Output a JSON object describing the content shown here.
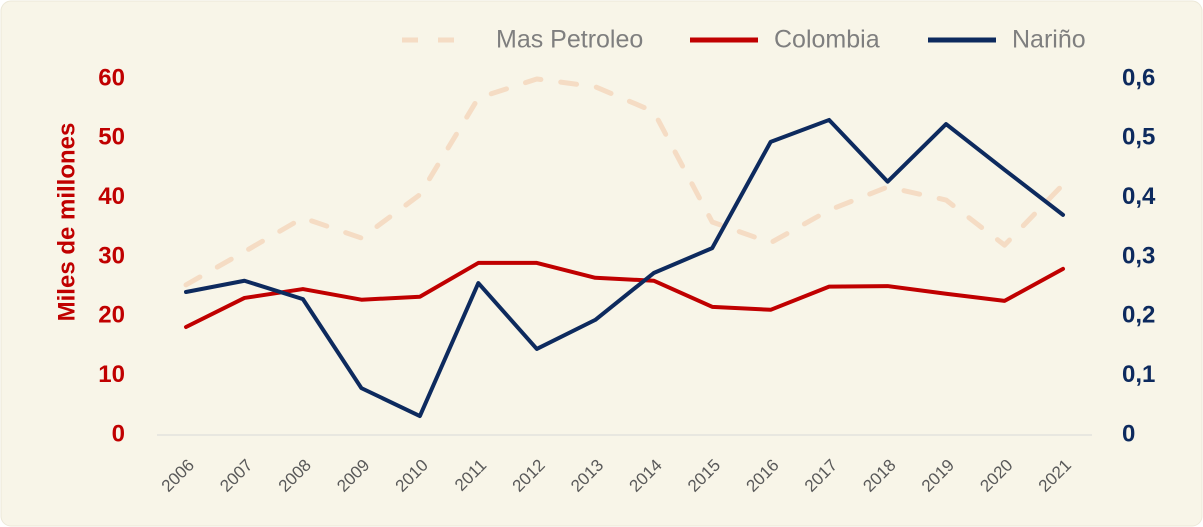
{
  "chart_data": {
    "type": "line",
    "y_label": "Miles de millones",
    "categories": [
      "2006",
      "2007",
      "2008",
      "2009",
      "2010",
      "2011",
      "2012",
      "2013",
      "2014",
      "2015",
      "2016",
      "2017",
      "2018",
      "2019",
      "2020",
      "2021"
    ],
    "series": [
      {
        "name": "Mas Petroleo",
        "color": "#f5dcc4",
        "dashed": true,
        "axis": "y",
        "values": [
          25.3,
          30.9,
          36.6,
          33.2,
          40.5,
          56.8,
          60,
          58.7,
          54.5,
          35.9,
          32.4,
          37.9,
          41.8,
          39.6,
          32,
          42.2
        ]
      },
      {
        "name": "Colombia",
        "color": "#c00000",
        "axis": "y",
        "values": [
          18.2,
          23.1,
          24.6,
          22.8,
          23.3,
          29,
          29,
          26.5,
          26,
          21.6,
          21.1,
          25,
          25.1,
          23.8,
          22.6,
          28
        ]
      },
      {
        "name": "Nariño",
        "color": "#0d2a5e",
        "axis": "y2",
        "values": [
          0.241,
          0.26,
          0.229,
          0.079,
          0.032,
          0.256,
          0.145,
          0.194,
          0.273,
          0.315,
          0.494,
          0.531,
          0.427,
          0.524,
          0.447,
          0.371
        ]
      }
    ],
    "ylim": [
      0,
      60
    ],
    "yticks": [
      0,
      10,
      20,
      30,
      40,
      50,
      60
    ],
    "y2lim": [
      0,
      0.6
    ],
    "y2ticks": [
      0,
      {
        "value": 0.1,
        "label": "0,1"
      },
      {
        "value": 0.2,
        "label": "0,2"
      },
      {
        "value": 0.3,
        "label": "0,3"
      },
      {
        "value": 0.4,
        "label": "0,4"
      },
      {
        "value": 0.5,
        "label": "0,5"
      },
      {
        "value": 0.6,
        "label": "0,6"
      }
    ],
    "y_color": "#c00000",
    "y2_color": "#0d2a5e",
    "legend": "top"
  }
}
